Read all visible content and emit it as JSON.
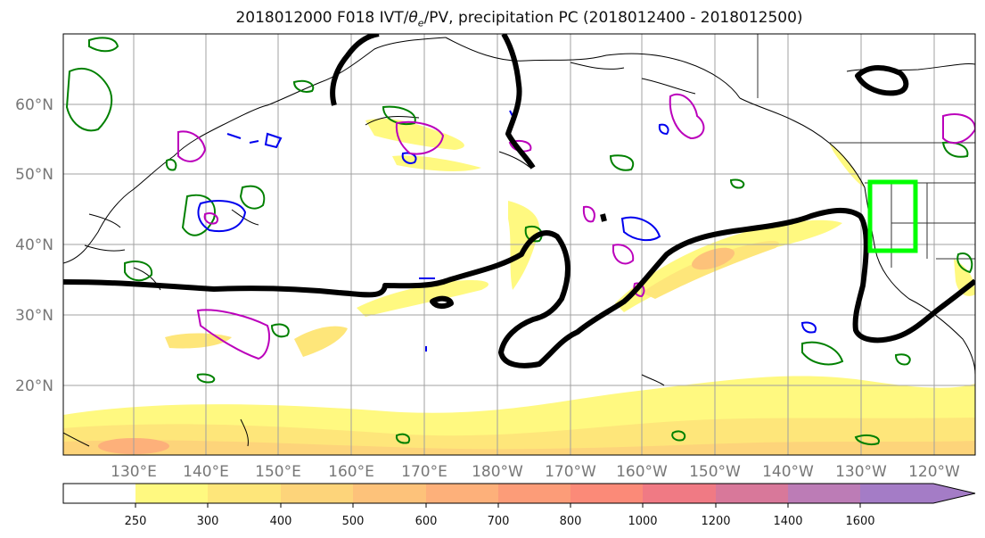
{
  "title": {
    "prefix": "2018012000 F018 IVT/",
    "theta": "θ",
    "theta_sub": "e",
    "suffix": "/PV, precipitation PC (2018012400 - 2018012500)"
  },
  "axes": {
    "lat_labels": [
      "60°N",
      "50°N",
      "40°N",
      "30°N",
      "20°N"
    ],
    "lon_labels": [
      "130°E",
      "140°E",
      "150°E",
      "160°E",
      "170°E",
      "180°W",
      "170°W",
      "160°W",
      "150°W",
      "140°W",
      "130°W",
      "120°W"
    ],
    "gridlines": true
  },
  "colorbar": {
    "ticks": [
      "250",
      "300",
      "400",
      "500",
      "600",
      "700",
      "800",
      "1000",
      "1200",
      "1400",
      "1600"
    ],
    "colors": [
      "#ffffff",
      "#fff980",
      "#fee67a",
      "#fdd47a",
      "#fdc27a",
      "#fdb07a",
      "#fc9c78",
      "#fb8a78",
      "#f07a84",
      "#d8789a",
      "#bc7cb6",
      "#a47cc6"
    ],
    "extend": "max"
  },
  "legend_colors": {
    "ivt_contour": "#000000",
    "theta_e": "#008000",
    "pv_blue": "#0000ee",
    "pv_magenta": "#bb00bb",
    "target_box": "#00ff00"
  }
}
